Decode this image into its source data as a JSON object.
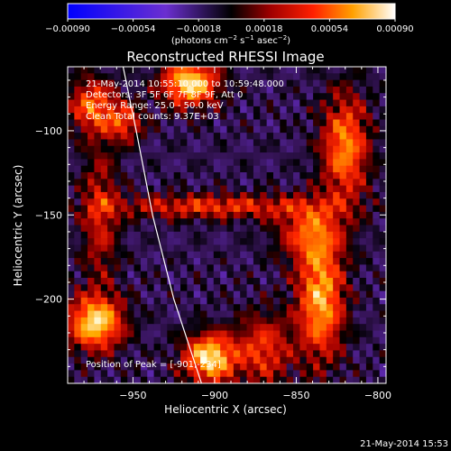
{
  "chart_data": {
    "type": "heatmap",
    "title": "Reconstructed RHESSI Image",
    "xlabel": "Heliocentric X (arcsec)",
    "ylabel": "Heliocentric Y (arcsec)",
    "xlim": [
      -990,
      -795
    ],
    "ylim": [
      -250,
      -62
    ],
    "x_ticks": [
      -950,
      -900,
      -850,
      -800
    ],
    "y_ticks": [
      -100,
      -150,
      -200
    ],
    "x_tick_labels": [
      "−950",
      "−900",
      "−850",
      "−800"
    ],
    "y_tick_labels": [
      "−100",
      "−150",
      "−200"
    ],
    "colorbar": {
      "range": [
        -0.0009,
        0.0009
      ],
      "ticks": [
        "−0.00090",
        "−0.00054",
        "−0.00018",
        "0.00018",
        "0.00054",
        "0.00090"
      ],
      "units_prefix": "(photons cm",
      "units_exp1": "−2",
      "units_mid1": " s",
      "units_exp2": "−1",
      "units_mid2": " asec",
      "units_exp3": "−2",
      "units_suffix": ")"
    },
    "annotations": [
      "21-May-2014 10:55:10.000 to 10:59:48.000",
      "Detectors: 3F 5F 6F 7F 8F 9F, Att 0",
      "Energy Range: 25.0 - 50.0 keV",
      "Clean    Total counts: 9.37E+03"
    ],
    "peak_label": "Position of Peak = [-901,-234]",
    "limb_curve": [
      [
        -956,
        -62
      ],
      [
        -948,
        -100
      ],
      [
        -938,
        -150
      ],
      [
        -925,
        -200
      ],
      [
        -908,
        -250
      ]
    ],
    "sources": [
      {
        "x": -903,
        "y": -235,
        "amp": 0.00095,
        "sx": 11,
        "sy": 10
      },
      {
        "x": -973,
        "y": -214,
        "amp": 0.0009,
        "sx": 12,
        "sy": 11
      },
      {
        "x": -915,
        "y": -72,
        "amp": 0.00095,
        "sx": 12,
        "sy": 9
      },
      {
        "x": -975,
        "y": -85,
        "amp": 0.0006,
        "sx": 10,
        "sy": 11
      },
      {
        "x": -955,
        "y": -95,
        "amp": 0.0005,
        "sx": 8,
        "sy": 8
      },
      {
        "x": -835,
        "y": -200,
        "amp": 0.0008,
        "sx": 10,
        "sy": 25
      },
      {
        "x": -820,
        "y": -110,
        "amp": 0.0007,
        "sx": 10,
        "sy": 22
      },
      {
        "x": -842,
        "y": -160,
        "amp": 0.0005,
        "sx": 14,
        "sy": 12
      },
      {
        "x": -900,
        "y": -145,
        "amp": 0.0005,
        "sx": 45,
        "sy": 5
      },
      {
        "x": -970,
        "y": -150,
        "amp": 0.0004,
        "sx": 8,
        "sy": 30
      },
      {
        "x": -870,
        "y": -230,
        "amp": 0.0005,
        "sx": 12,
        "sy": 15
      }
    ]
  },
  "footer_timestamp": "21-May-2014 15:53"
}
